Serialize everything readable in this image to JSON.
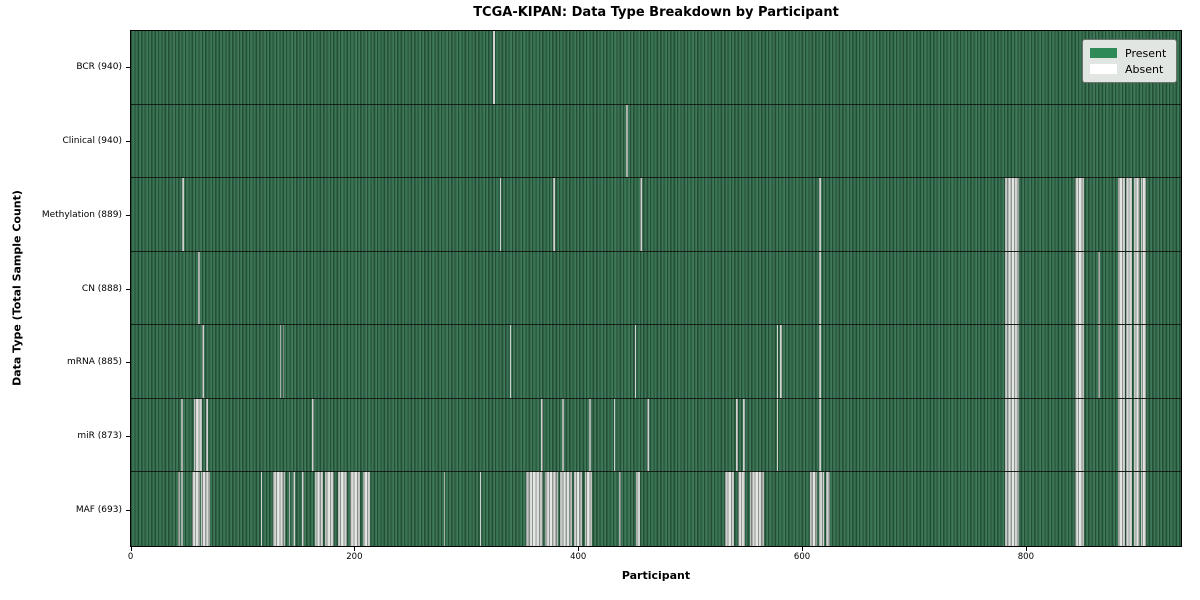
{
  "chart_data": {
    "type": "heatmap",
    "title": "TCGA-KIPAN: Data Type Breakdown by Participant",
    "xlabel": "Participant",
    "ylabel": "Data Type (Total Sample Count)",
    "x_range": [
      0,
      940
    ],
    "x_ticks": [
      0,
      200,
      400,
      600,
      800
    ],
    "grid": "off",
    "legend_position": "upper right",
    "legend_items": [
      {
        "label": "Present",
        "color": "#2e8b57"
      },
      {
        "label": "Absent",
        "color": "#ffffff"
      }
    ],
    "colors": {
      "present_fill": "#35704f",
      "absent_fill": "#ced2ce",
      "row_separator": "#141a14",
      "legend_bg": "#e2e6e2"
    },
    "rows": [
      {
        "label": "BCR",
        "count": 940,
        "display": "BCR (940)",
        "absent_ranges": [
          [
            324,
            325.5
          ]
        ]
      },
      {
        "label": "Clinical",
        "count": 940,
        "display": "Clinical (940)",
        "absent_ranges": [
          [
            443,
            444.5
          ]
        ]
      },
      {
        "label": "Methylation",
        "count": 889,
        "display": "Methylation (889)",
        "absent_ranges": [
          [
            46,
            47.5
          ],
          [
            330,
            331.5
          ],
          [
            378,
            379.5
          ],
          [
            456,
            457.5
          ],
          [
            616,
            617.5
          ],
          [
            782,
            795
          ],
          [
            845,
            853
          ],
          [
            884,
            890
          ],
          [
            891,
            896
          ],
          [
            898,
            903
          ],
          [
            904,
            909
          ]
        ]
      },
      {
        "label": "CN",
        "count": 888,
        "display": "CN (888)",
        "absent_ranges": [
          [
            60,
            61.5
          ],
          [
            616,
            617.5
          ],
          [
            782,
            795
          ],
          [
            845,
            853
          ],
          [
            866,
            867.5
          ],
          [
            884,
            890
          ],
          [
            891,
            896
          ],
          [
            898,
            903
          ],
          [
            904,
            909
          ]
        ]
      },
      {
        "label": "mRNA",
        "count": 885,
        "display": "mRNA (885)",
        "absent_ranges": [
          [
            64,
            65.5
          ],
          [
            133,
            134.2
          ],
          [
            136,
            137.2
          ],
          [
            339,
            340.5
          ],
          [
            451,
            452.5
          ],
          [
            578,
            579.2
          ],
          [
            581,
            582.5
          ],
          [
            616,
            617.5
          ],
          [
            782,
            795
          ],
          [
            845,
            853
          ],
          [
            866,
            867.5
          ],
          [
            884,
            890
          ],
          [
            891,
            896
          ],
          [
            898,
            903
          ],
          [
            904,
            909
          ]
        ]
      },
      {
        "label": "miR",
        "count": 873,
        "display": "miR (873)",
        "absent_ranges": [
          [
            45,
            46.2
          ],
          [
            56,
            64
          ],
          [
            67,
            69
          ],
          [
            162,
            163.5
          ],
          [
            367,
            368.5
          ],
          [
            386,
            387.5
          ],
          [
            410,
            411.5
          ],
          [
            432,
            433.5
          ],
          [
            462,
            463.5
          ],
          [
            542,
            543.5
          ],
          [
            548,
            550
          ],
          [
            578,
            579.5
          ],
          [
            616,
            617.5
          ],
          [
            782,
            795
          ],
          [
            845,
            853
          ],
          [
            884,
            890
          ],
          [
            891,
            896
          ],
          [
            898,
            903
          ],
          [
            904,
            909
          ]
        ]
      },
      {
        "label": "MAF",
        "count": 693,
        "display": "MAF (693)",
        "absent_ranges": [
          [
            42,
            43.5
          ],
          [
            45,
            46.5
          ],
          [
            55,
            62
          ],
          [
            63,
            71
          ],
          [
            116,
            117.5
          ],
          [
            127,
            138
          ],
          [
            141,
            142.5
          ],
          [
            145,
            147
          ],
          [
            153,
            155
          ],
          [
            165,
            172
          ],
          [
            174,
            182
          ],
          [
            185,
            193
          ],
          [
            196,
            205
          ],
          [
            208,
            214
          ],
          [
            280,
            281.5
          ],
          [
            312,
            313.5
          ],
          [
            354,
            369
          ],
          [
            371,
            382
          ],
          [
            384,
            395
          ],
          [
            397,
            404
          ],
          [
            406,
            413
          ],
          [
            437,
            438.5
          ],
          [
            452,
            456
          ],
          [
            532,
            540
          ],
          [
            543,
            550
          ],
          [
            554,
            567
          ],
          [
            608,
            614
          ],
          [
            616,
            620
          ],
          [
            622,
            626
          ],
          [
            782,
            795
          ],
          [
            845,
            853
          ],
          [
            884,
            890
          ],
          [
            891,
            896
          ],
          [
            898,
            903
          ],
          [
            904,
            909
          ]
        ]
      }
    ]
  }
}
